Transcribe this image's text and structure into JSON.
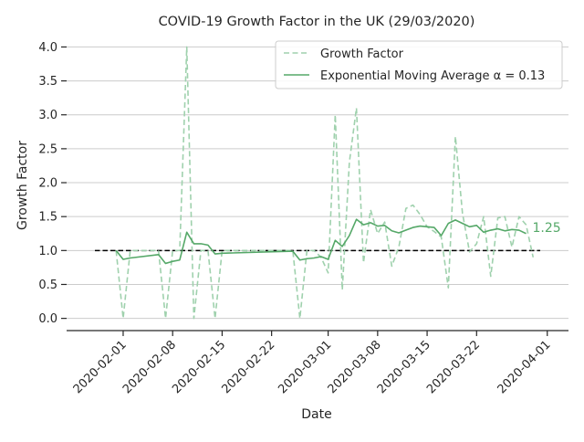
{
  "chart_data": {
    "type": "line",
    "title": "COVID-19 Growth Factor in the UK (29/03/2020)",
    "xlabel": "Date",
    "ylabel": "Growth Factor",
    "xlim": [
      "2020-01-24",
      "2020-04-04"
    ],
    "ylim": [
      -0.18,
      4.1
    ],
    "x_ticks": [
      "2020-02-01",
      "2020-02-08",
      "2020-02-15",
      "2020-02-22",
      "2020-03-01",
      "2020-03-08",
      "2020-03-15",
      "2020-03-22",
      "2020-04-01"
    ],
    "y_ticks": [
      "0.0",
      "0.5",
      "1.0",
      "1.5",
      "2.0",
      "2.5",
      "3.0",
      "3.5",
      "4.0"
    ],
    "grid": "horizontal",
    "legend_position": "top-right",
    "reference_line": {
      "y": 1.0,
      "x_start": "2020-01-28",
      "x_end": "2020-03-31",
      "style": "dashed",
      "color": "#000000"
    },
    "end_annotation": {
      "text": "1.25",
      "color": "#55a868"
    },
    "colors": {
      "growth_factor": "#9fd1ad",
      "ema": "#55a868",
      "reference": "#000000",
      "grid": "#cccccc"
    },
    "series": [
      {
        "name": "Growth Factor",
        "style": "dashed",
        "points": [
          [
            "2020-01-31",
            1.0
          ],
          [
            "2020-02-01",
            0.0
          ],
          [
            "2020-02-02",
            1.0
          ],
          [
            "2020-02-06",
            1.0
          ],
          [
            "2020-02-07",
            0.0
          ],
          [
            "2020-02-08",
            1.0
          ],
          [
            "2020-02-09",
            1.0
          ],
          [
            "2020-02-10",
            4.0
          ],
          [
            "2020-02-11",
            0.0
          ],
          [
            "2020-02-12",
            1.0
          ],
          [
            "2020-02-13",
            1.0
          ],
          [
            "2020-02-14",
            0.0
          ],
          [
            "2020-02-15",
            1.0
          ],
          [
            "2020-02-25",
            1.0
          ],
          [
            "2020-02-26",
            0.0
          ],
          [
            "2020-02-27",
            1.0
          ],
          [
            "2020-02-28",
            1.0
          ],
          [
            "2020-02-29",
            0.9
          ],
          [
            "2020-03-01",
            0.67
          ],
          [
            "2020-03-02",
            3.0
          ],
          [
            "2020-03-03",
            0.42
          ],
          [
            "2020-03-04",
            2.3
          ],
          [
            "2020-03-05",
            3.1
          ],
          [
            "2020-03-06",
            0.82
          ],
          [
            "2020-03-07",
            1.6
          ],
          [
            "2020-03-08",
            1.25
          ],
          [
            "2020-03-09",
            1.42
          ],
          [
            "2020-03-10",
            0.77
          ],
          [
            "2020-03-11",
            1.05
          ],
          [
            "2020-03-12",
            1.62
          ],
          [
            "2020-03-13",
            1.67
          ],
          [
            "2020-03-14",
            1.53
          ],
          [
            "2020-03-15",
            1.35
          ],
          [
            "2020-03-16",
            1.28
          ],
          [
            "2020-03-17",
            1.2
          ],
          [
            "2020-03-18",
            0.45
          ],
          [
            "2020-03-19",
            2.68
          ],
          [
            "2020-03-20",
            1.55
          ],
          [
            "2020-03-21",
            0.98
          ],
          [
            "2020-03-22",
            1.1
          ],
          [
            "2020-03-23",
            1.5
          ],
          [
            "2020-03-24",
            0.62
          ],
          [
            "2020-03-25",
            1.48
          ],
          [
            "2020-03-26",
            1.5
          ],
          [
            "2020-03-27",
            1.05
          ],
          [
            "2020-03-28",
            1.5
          ],
          [
            "2020-03-29",
            1.38
          ],
          [
            "2020-03-30",
            0.9
          ]
        ]
      },
      {
        "name": "Exponential Moving Average α = 0.13",
        "style": "solid",
        "points": [
          [
            "2020-01-31",
            1.0
          ],
          [
            "2020-02-01",
            0.87
          ],
          [
            "2020-02-02",
            0.89
          ],
          [
            "2020-02-06",
            0.94
          ],
          [
            "2020-02-07",
            0.81
          ],
          [
            "2020-02-08",
            0.84
          ],
          [
            "2020-02-09",
            0.86
          ],
          [
            "2020-02-10",
            1.27
          ],
          [
            "2020-02-11",
            1.1
          ],
          [
            "2020-02-12",
            1.1
          ],
          [
            "2020-02-13",
            1.08
          ],
          [
            "2020-02-14",
            0.95
          ],
          [
            "2020-02-15",
            0.96
          ],
          [
            "2020-02-25",
            0.99
          ],
          [
            "2020-02-26",
            0.86
          ],
          [
            "2020-02-27",
            0.88
          ],
          [
            "2020-02-28",
            0.89
          ],
          [
            "2020-02-29",
            0.91
          ],
          [
            "2020-03-01",
            0.87
          ],
          [
            "2020-03-02",
            1.15
          ],
          [
            "2020-03-03",
            1.06
          ],
          [
            "2020-03-04",
            1.22
          ],
          [
            "2020-03-05",
            1.46
          ],
          [
            "2020-03-06",
            1.38
          ],
          [
            "2020-03-07",
            1.41
          ],
          [
            "2020-03-08",
            1.36
          ],
          [
            "2020-03-09",
            1.37
          ],
          [
            "2020-03-10",
            1.29
          ],
          [
            "2020-03-11",
            1.26
          ],
          [
            "2020-03-12",
            1.3
          ],
          [
            "2020-03-13",
            1.34
          ],
          [
            "2020-03-14",
            1.36
          ],
          [
            "2020-03-15",
            1.35
          ],
          [
            "2020-03-16",
            1.34
          ],
          [
            "2020-03-17",
            1.22
          ],
          [
            "2020-03-18",
            1.4
          ],
          [
            "2020-03-19",
            1.45
          ],
          [
            "2020-03-20",
            1.4
          ],
          [
            "2020-03-21",
            1.35
          ],
          [
            "2020-03-22",
            1.37
          ],
          [
            "2020-03-23",
            1.27
          ],
          [
            "2020-03-24",
            1.3
          ],
          [
            "2020-03-25",
            1.32
          ],
          [
            "2020-03-26",
            1.29
          ],
          [
            "2020-03-27",
            1.31
          ],
          [
            "2020-03-28",
            1.3
          ],
          [
            "2020-03-29",
            1.25
          ]
        ]
      }
    ]
  }
}
